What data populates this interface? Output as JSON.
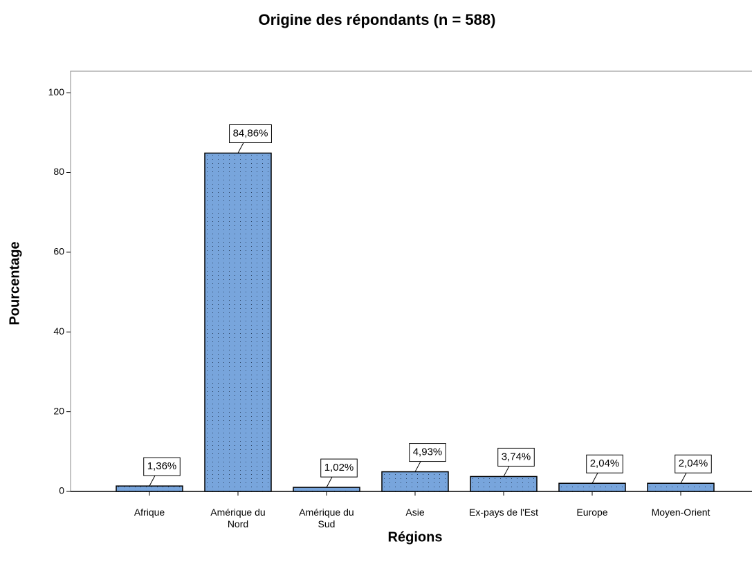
{
  "chart_data": {
    "type": "bar",
    "title": "Origine des répondants (n = 588)",
    "x_label": "Régions",
    "y_label": "Pourcentage",
    "categories": [
      "Afrique",
      "Amérique du Nord",
      "Amérique du Sud",
      "Asie",
      "Ex-pays de l'Est",
      "Europe",
      "Moyen-Orient"
    ],
    "values": [
      1.36,
      84.86,
      1.02,
      4.93,
      3.74,
      2.04,
      2.04
    ],
    "value_labels": [
      "1,36%",
      "84,86%",
      "1,02%",
      "4,93%",
      "3,74%",
      "2,04%",
      "2,04%"
    ],
    "color": "#78a5dc",
    "ylim": [
      0,
      105.4
    ],
    "yticks": [
      0,
      20,
      40,
      60,
      80,
      100
    ],
    "grid": false
  }
}
